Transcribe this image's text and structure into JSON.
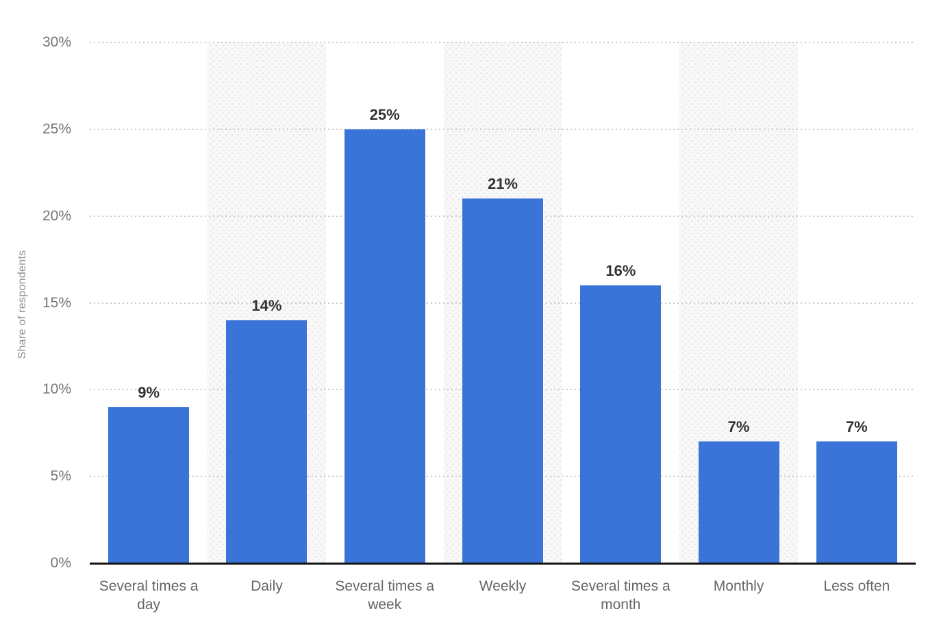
{
  "chart_data": {
    "type": "bar",
    "title": "",
    "xlabel": "",
    "ylabel": "Share of respondents",
    "categories": [
      "Several times a day",
      "Daily",
      "Several times a week",
      "Weekly",
      "Several times a month",
      "Monthly",
      "Less often"
    ],
    "values": [
      9,
      14,
      25,
      21,
      16,
      7,
      7
    ],
    "value_labels": [
      "9%",
      "14%",
      "25%",
      "21%",
      "16%",
      "7%",
      "7%"
    ],
    "ylim": [
      0,
      30
    ],
    "ytick_step": 5,
    "ytick_labels": [
      "0%",
      "5%",
      "10%",
      "15%",
      "20%",
      "25%",
      "30%"
    ],
    "grid": "horizontal-dotted",
    "legend": "none",
    "banded_categories": [
      "Daily",
      "Weekly",
      "Monthly"
    ],
    "colors": {
      "bar": "#3A74D8",
      "band_background": "#f8f8f8",
      "band_dots": "#e3e3e3",
      "gridline": "#c9c9c9",
      "axis_line": "#141414",
      "ytick_text": "#757575",
      "xlabel_text": "#666666",
      "value_label_text": "#333333",
      "y_title_text": "#8f8f8f"
    }
  }
}
